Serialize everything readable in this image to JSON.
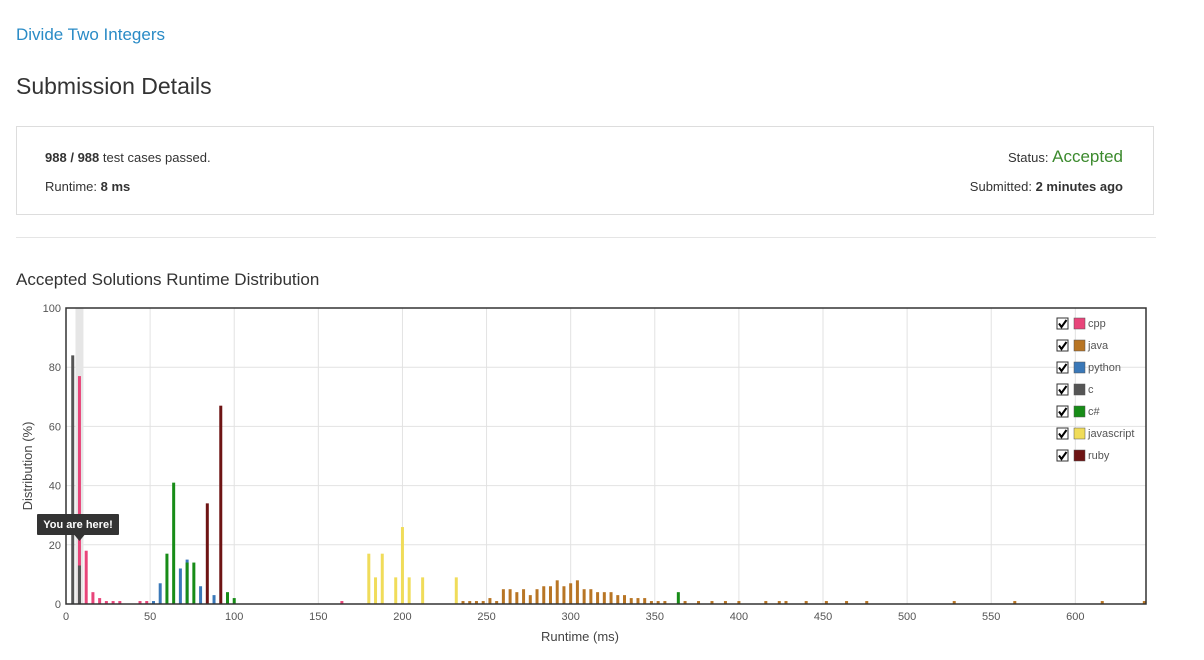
{
  "problem": {
    "title": "Divide Two Integers"
  },
  "page": {
    "title": "Submission Details"
  },
  "submission": {
    "passed": "988",
    "separator": "/",
    "total": "988",
    "passed_suffix": "test cases passed.",
    "runtime_label": "Runtime:",
    "runtime_value": "8 ms",
    "status_label": "Status:",
    "status_value": "Accepted",
    "status_color": "#3c8a2e",
    "submitted_label": "Submitted:",
    "submitted_value": "2 minutes ago"
  },
  "chart_data": {
    "type": "bar",
    "title": "Accepted Solutions Runtime Distribution",
    "xlabel": "Runtime (ms)",
    "ylabel": "Distribution (%)",
    "xlim": [
      0,
      642
    ],
    "ylim": [
      0,
      100
    ],
    "x_ticks": [
      0,
      50,
      100,
      150,
      200,
      250,
      300,
      350,
      400,
      450,
      500,
      550,
      600
    ],
    "y_ticks": [
      0,
      20,
      40,
      60,
      80,
      100
    ],
    "grid": true,
    "legend_position": "top-right",
    "highlight": {
      "x": 8,
      "label": "You are here!"
    },
    "series": [
      {
        "name": "cpp",
        "color": "#e8457a",
        "checked": true,
        "points": [
          [
            8,
            77
          ],
          [
            12,
            18
          ],
          [
            16,
            4
          ],
          [
            20,
            2
          ],
          [
            24,
            1
          ],
          [
            28,
            1
          ],
          [
            32,
            1
          ],
          [
            44,
            1
          ],
          [
            48,
            1
          ],
          [
            164,
            1
          ]
        ]
      },
      {
        "name": "java",
        "color": "#b87524",
        "checked": true,
        "points": [
          [
            236,
            1
          ],
          [
            240,
            1
          ],
          [
            244,
            1
          ],
          [
            248,
            1
          ],
          [
            252,
            2
          ],
          [
            256,
            1
          ],
          [
            260,
            5
          ],
          [
            264,
            5
          ],
          [
            268,
            4
          ],
          [
            272,
            5
          ],
          [
            276,
            3
          ],
          [
            280,
            5
          ],
          [
            284,
            6
          ],
          [
            288,
            6
          ],
          [
            292,
            8
          ],
          [
            296,
            6
          ],
          [
            300,
            7
          ],
          [
            304,
            8
          ],
          [
            308,
            5
          ],
          [
            312,
            5
          ],
          [
            316,
            4
          ],
          [
            320,
            4
          ],
          [
            324,
            4
          ],
          [
            328,
            3
          ],
          [
            332,
            3
          ],
          [
            336,
            2
          ],
          [
            340,
            2
          ],
          [
            344,
            2
          ],
          [
            348,
            1
          ],
          [
            352,
            1
          ],
          [
            356,
            1
          ],
          [
            368,
            1
          ],
          [
            376,
            1
          ],
          [
            384,
            1
          ],
          [
            392,
            1
          ],
          [
            400,
            1
          ],
          [
            416,
            1
          ],
          [
            424,
            1
          ],
          [
            428,
            1
          ],
          [
            440,
            1
          ],
          [
            452,
            1
          ],
          [
            464,
            1
          ],
          [
            476,
            1
          ],
          [
            528,
            1
          ],
          [
            564,
            1
          ],
          [
            616,
            1
          ],
          [
            641,
            1
          ]
        ]
      },
      {
        "name": "python",
        "color": "#3a78b8",
        "checked": true,
        "points": [
          [
            52,
            1
          ],
          [
            56,
            7
          ],
          [
            68,
            12
          ],
          [
            72,
            15
          ],
          [
            80,
            6
          ],
          [
            88,
            3
          ]
        ]
      },
      {
        "name": "c",
        "color": "#555555",
        "checked": true,
        "points": [
          [
            4,
            84
          ],
          [
            8,
            13
          ]
        ]
      },
      {
        "name": "c#",
        "color": "#178c17",
        "checked": true,
        "points": [
          [
            60,
            17
          ],
          [
            64,
            41
          ],
          [
            72,
            14
          ],
          [
            76,
            14
          ],
          [
            96,
            4
          ],
          [
            100,
            2
          ],
          [
            364,
            4
          ]
        ]
      },
      {
        "name": "javascript",
        "color": "#f0dc5a",
        "checked": true,
        "points": [
          [
            180,
            17
          ],
          [
            184,
            9
          ],
          [
            188,
            17
          ],
          [
            196,
            9
          ],
          [
            200,
            26
          ],
          [
            204,
            9
          ],
          [
            212,
            9
          ],
          [
            232,
            9
          ]
        ]
      },
      {
        "name": "ruby",
        "color": "#6e1414",
        "checked": true,
        "points": [
          [
            84,
            34
          ],
          [
            92,
            67
          ]
        ]
      }
    ]
  }
}
